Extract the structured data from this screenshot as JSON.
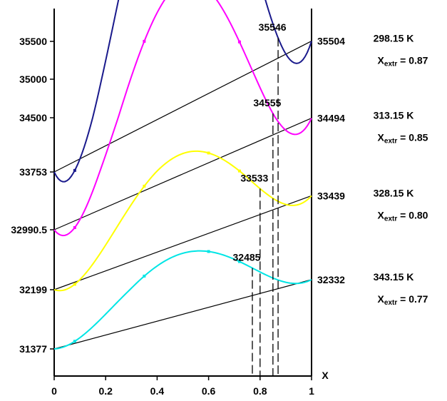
{
  "chart_data": {
    "type": "line",
    "xlabel": "X",
    "ylabel": "",
    "xlim": [
      0,
      1
    ],
    "x_ticks": [
      "0",
      "0.2",
      "0.4",
      "0.6",
      "0.8",
      "1"
    ],
    "y_tick_labels": [
      "35500",
      "35000",
      "34500",
      "33753",
      "32990.5",
      "32199",
      "31377"
    ],
    "series": [
      {
        "name": "298.15 K",
        "color": "#1a1a8c",
        "start": 33753,
        "end": 35504,
        "max": 35546,
        "x_extr": 0.87,
        "start_label": "33753",
        "end_label": "35504",
        "max_label": "35546",
        "temp_label": "298.15 K",
        "xextr_prefix": "X",
        "xextr_sub": "extr",
        "xextr_value": " = 0.87"
      },
      {
        "name": "313.15 K",
        "color": "#ff00ff",
        "start": 32990.5,
        "end": 34494,
        "max": 34555,
        "x_extr": 0.85,
        "start_label": "32990.5",
        "end_label": "34494",
        "max_label": "34555",
        "temp_label": "313.15 K",
        "xextr_prefix": "X",
        "xextr_sub": "extr",
        "xextr_value": " = 0.85"
      },
      {
        "name": "328.15 K",
        "color": "#ffff00",
        "start": 32199,
        "end": 33439,
        "max": 33533,
        "x_extr": 0.8,
        "start_label": "32199",
        "end_label": "33439",
        "max_label": "33533",
        "temp_label": "328.15 K",
        "xextr_prefix": "X",
        "xextr_sub": "extr",
        "xextr_value": " = 0.80"
      },
      {
        "name": "343.15 K",
        "color": "#00e5e5",
        "start": 31377,
        "end": 32332,
        "max": 32485,
        "x_extr": 0.77,
        "start_label": "31377",
        "end_label": "32332",
        "max_label": "32485",
        "temp_label": "343.15 K",
        "xextr_prefix": "X",
        "xextr_sub": "extr",
        "xextr_value": " = 0.77"
      }
    ]
  }
}
